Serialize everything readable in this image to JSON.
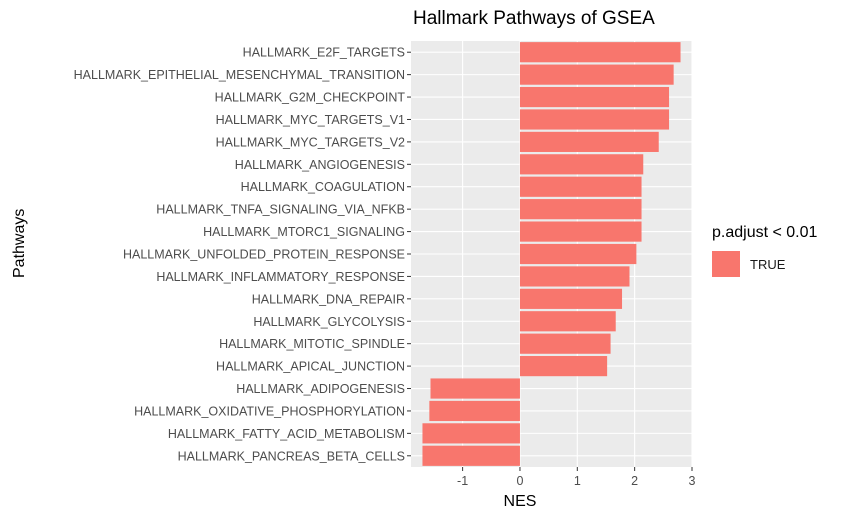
{
  "chart_data": {
    "type": "bar",
    "orientation": "horizontal",
    "title": "Hallmark Pathways of GSEA",
    "xlabel": "NES",
    "ylabel": "Pathways",
    "xlim": [
      -1.9,
      3.0
    ],
    "x_ticks": [
      -1,
      0,
      1,
      2,
      3
    ],
    "grid": true,
    "legend": {
      "title": "p.adjust < 0.01",
      "placement": "right",
      "entries": [
        {
          "label": "TRUE",
          "color": "#F8766D"
        }
      ]
    },
    "categories": [
      "HALLMARK_E2F_TARGETS",
      "HALLMARK_EPITHELIAL_MESENCHYMAL_TRANSITION",
      "HALLMARK_G2M_CHECKPOINT",
      "HALLMARK_MYC_TARGETS_V1",
      "HALLMARK_MYC_TARGETS_V2",
      "HALLMARK_ANGIOGENESIS",
      "HALLMARK_COAGULATION",
      "HALLMARK_TNFA_SIGNALING_VIA_NFKB",
      "HALLMARK_MTORC1_SIGNALING",
      "HALLMARK_UNFOLDED_PROTEIN_RESPONSE",
      "HALLMARK_INFLAMMATORY_RESPONSE",
      "HALLMARK_DNA_REPAIR",
      "HALLMARK_GLYCOLYSIS",
      "HALLMARK_MITOTIC_SPINDLE",
      "HALLMARK_APICAL_JUNCTION",
      "HALLMARK_ADIPOGENESIS",
      "HALLMARK_OXIDATIVE_PHOSPHORYLATION",
      "HALLMARK_FATTY_ACID_METABOLISM",
      "HALLMARK_PANCREAS_BETA_CELLS"
    ],
    "values": [
      2.8,
      2.68,
      2.6,
      2.6,
      2.42,
      2.15,
      2.12,
      2.12,
      2.12,
      2.03,
      1.91,
      1.78,
      1.67,
      1.58,
      1.52,
      -1.56,
      -1.58,
      -1.7,
      -1.7
    ],
    "bar_color": "#F8766D"
  }
}
